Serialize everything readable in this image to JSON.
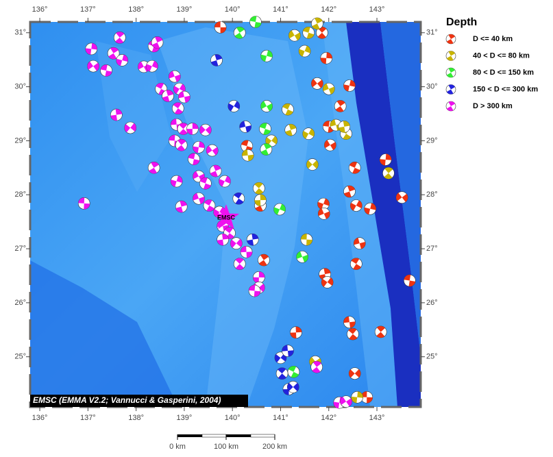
{
  "map": {
    "lon_ticks": [
      {
        "value": 136,
        "label": "136°"
      },
      {
        "value": 137,
        "label": "137°"
      },
      {
        "value": 138,
        "label": "138°"
      },
      {
        "value": 139,
        "label": "139°"
      },
      {
        "value": 140,
        "label": "140°"
      },
      {
        "value": 141,
        "label": "141°"
      },
      {
        "value": 142,
        "label": "142°"
      },
      {
        "value": 143,
        "label": "143°"
      }
    ],
    "lat_ticks": [
      {
        "value": 25,
        "label": "25°"
      },
      {
        "value": 26,
        "label": "26°"
      },
      {
        "value": 27,
        "label": "27°"
      },
      {
        "value": 28,
        "label": "28°"
      },
      {
        "value": 29,
        "label": "29°"
      },
      {
        "value": 30,
        "label": "30°"
      },
      {
        "value": 31,
        "label": "31°"
      }
    ],
    "xlim": [
      135.8,
      143.91
    ],
    "ylim": [
      24.07,
      31.2
    ],
    "credit": "EMSC (EMMA V2.2; Vannucci & Gasperini, 2004)",
    "station": {
      "label": "EMSC",
      "lon": 139.87,
      "lat": 27.57,
      "color": "#ee11ee"
    },
    "scale_labels": [
      "0 km",
      "100 km",
      "200 km"
    ],
    "legend": {
      "title": "Depth",
      "items": [
        {
          "label": "D <= 40 km",
          "color": "#ee3311"
        },
        {
          "label": "40 < D <= 80 km",
          "color": "#c8b400"
        },
        {
          "label": "80 < D <= 150 km",
          "color": "#33ee33"
        },
        {
          "label": "150 < D <= 300 km",
          "color": "#2222dd"
        },
        {
          "label": "D > 300 km",
          "color": "#ee11ee"
        }
      ]
    },
    "events": [
      [
        139.75,
        31.1,
        0
      ],
      [
        141.86,
        31.0,
        0
      ],
      [
        141.95,
        30.53,
        0
      ],
      [
        141.76,
        30.06,
        0
      ],
      [
        142.0,
        29.26,
        0
      ],
      [
        142.24,
        29.64,
        0
      ],
      [
        142.43,
        30.02,
        0
      ],
      [
        142.03,
        28.92,
        0
      ],
      [
        140.3,
        28.9,
        0
      ],
      [
        140.58,
        27.8,
        0
      ],
      [
        141.89,
        27.83,
        0
      ],
      [
        141.9,
        27.65,
        0
      ],
      [
        142.54,
        28.5,
        0
      ],
      [
        142.43,
        28.06,
        0
      ],
      [
        142.57,
        27.8,
        0
      ],
      [
        142.64,
        27.1,
        0
      ],
      [
        142.57,
        26.72,
        0
      ],
      [
        141.92,
        26.53,
        0
      ],
      [
        141.97,
        26.38,
        0
      ],
      [
        142.43,
        25.64,
        0
      ],
      [
        142.5,
        25.42,
        0
      ],
      [
        141.32,
        25.45,
        0
      ],
      [
        142.54,
        24.69,
        0
      ],
      [
        142.79,
        24.25,
        0
      ],
      [
        143.08,
        25.46,
        0
      ],
      [
        143.18,
        28.65,
        0
      ],
      [
        143.52,
        27.95,
        0
      ],
      [
        143.68,
        26.41,
        0
      ],
      [
        140.65,
        26.79,
        0
      ],
      [
        142.86,
        27.74,
        0
      ],
      [
        141.29,
        30.95,
        1
      ],
      [
        141.58,
        31.0,
        1
      ],
      [
        141.76,
        31.17,
        1
      ],
      [
        141.5,
        30.66,
        1
      ],
      [
        142.0,
        29.96,
        1
      ],
      [
        141.15,
        29.58,
        1
      ],
      [
        141.21,
        29.2,
        1
      ],
      [
        141.58,
        29.13,
        1
      ],
      [
        142.15,
        29.29,
        1
      ],
      [
        142.36,
        29.13,
        1
      ],
      [
        142.32,
        29.26,
        1
      ],
      [
        140.81,
        29.0,
        1
      ],
      [
        140.32,
        28.73,
        1
      ],
      [
        140.55,
        28.12,
        1
      ],
      [
        140.58,
        27.9,
        1
      ],
      [
        141.66,
        28.56,
        1
      ],
      [
        141.54,
        27.17,
        1
      ],
      [
        143.24,
        28.4,
        1
      ],
      [
        142.59,
        24.25,
        1
      ],
      [
        141.72,
        24.91,
        1
      ],
      [
        140.48,
        31.2,
        2
      ],
      [
        140.15,
        31.0,
        2
      ],
      [
        140.71,
        30.57,
        2
      ],
      [
        140.71,
        29.64,
        2
      ],
      [
        140.68,
        29.22,
        2
      ],
      [
        140.7,
        28.84,
        2
      ],
      [
        140.98,
        27.73,
        2
      ],
      [
        141.45,
        26.85,
        2
      ],
      [
        141.27,
        24.72,
        2
      ],
      [
        139.67,
        30.49,
        3
      ],
      [
        140.03,
        29.64,
        3
      ],
      [
        140.27,
        29.26,
        3
      ],
      [
        140.13,
        27.93,
        3
      ],
      [
        140.42,
        27.17,
        3
      ],
      [
        141.0,
        24.98,
        3
      ],
      [
        141.15,
        25.11,
        3
      ],
      [
        141.03,
        24.69,
        3
      ],
      [
        141.17,
        24.4,
        3
      ],
      [
        141.26,
        24.44,
        3
      ],
      [
        136.92,
        27.84,
        4
      ],
      [
        137.66,
        30.91,
        4
      ],
      [
        137.07,
        30.7,
        4
      ],
      [
        137.11,
        30.38,
        4
      ],
      [
        137.38,
        30.3,
        4
      ],
      [
        137.53,
        30.62,
        4
      ],
      [
        137.71,
        30.49,
        4
      ],
      [
        138.16,
        30.37,
        4
      ],
      [
        138.37,
        30.75,
        4
      ],
      [
        138.44,
        30.82,
        4
      ],
      [
        138.33,
        30.38,
        4
      ],
      [
        138.8,
        30.19,
        4
      ],
      [
        138.52,
        29.96,
        4
      ],
      [
        138.66,
        29.83,
        4
      ],
      [
        138.9,
        29.96,
        4
      ],
      [
        139.0,
        29.81,
        4
      ],
      [
        138.87,
        29.6,
        4
      ],
      [
        137.59,
        29.48,
        4
      ],
      [
        137.88,
        29.24,
        4
      ],
      [
        138.84,
        29.3,
        4
      ],
      [
        138.98,
        29.22,
        4
      ],
      [
        139.17,
        29.22,
        4
      ],
      [
        139.44,
        29.2,
        4
      ],
      [
        138.8,
        29.0,
        4
      ],
      [
        138.94,
        28.92,
        4
      ],
      [
        139.3,
        28.88,
        4
      ],
      [
        139.58,
        28.82,
        4
      ],
      [
        139.2,
        28.66,
        4
      ],
      [
        138.37,
        28.5,
        4
      ],
      [
        138.84,
        28.25,
        4
      ],
      [
        139.3,
        28.34,
        4
      ],
      [
        139.44,
        28.21,
        4
      ],
      [
        139.65,
        28.44,
        4
      ],
      [
        139.84,
        28.25,
        4
      ],
      [
        139.3,
        27.93,
        4
      ],
      [
        139.52,
        27.8,
        4
      ],
      [
        138.94,
        27.78,
        4
      ],
      [
        139.73,
        27.68,
        4
      ],
      [
        139.8,
        27.42,
        4
      ],
      [
        139.94,
        27.29,
        4
      ],
      [
        139.8,
        27.17,
        4
      ],
      [
        140.08,
        27.1,
        4
      ],
      [
        140.29,
        26.94,
        4
      ],
      [
        140.15,
        26.72,
        4
      ],
      [
        140.55,
        26.47,
        4
      ],
      [
        140.55,
        26.28,
        4
      ],
      [
        140.46,
        26.22,
        4
      ],
      [
        141.75,
        24.81,
        4
      ],
      [
        142.22,
        24.15,
        4
      ],
      [
        142.36,
        24.17,
        4
      ]
    ]
  }
}
